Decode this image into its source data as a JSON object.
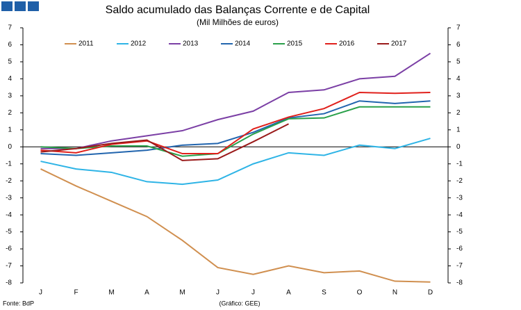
{
  "chart_data": {
    "type": "line",
    "title": "Saldo acumulado das Balanças Corrente e de Capital",
    "subtitle": "(Mil Milhões de euros)",
    "source": "Fonte: BdP",
    "credit": "(Gráfico: GEE)",
    "categories": [
      "J",
      "F",
      "M",
      "A",
      "M",
      "J",
      "J",
      "A",
      "S",
      "O",
      "N",
      "D"
    ],
    "series": [
      {
        "name": "2011",
        "color": "#d08f4f",
        "values": [
          -1.3,
          -2.3,
          -3.2,
          -4.1,
          -5.5,
          -7.1,
          -7.5,
          -7.0,
          -7.4,
          -7.3,
          -7.9,
          -7.95
        ]
      },
      {
        "name": "2012",
        "color": "#2eb4e6",
        "values": [
          -0.85,
          -1.3,
          -1.5,
          -2.05,
          -2.2,
          -1.95,
          -1.0,
          -0.35,
          -0.5,
          0.1,
          -0.1,
          0.5
        ]
      },
      {
        "name": "2013",
        "color": "#7b3fa5",
        "values": [
          -0.1,
          -0.1,
          0.35,
          0.65,
          0.95,
          1.6,
          2.1,
          3.2,
          3.35,
          4.0,
          4.15,
          5.5
        ]
      },
      {
        "name": "2014",
        "color": "#2265ae",
        "values": [
          -0.4,
          -0.5,
          -0.35,
          -0.2,
          0.1,
          0.2,
          0.85,
          1.7,
          1.95,
          2.7,
          2.55,
          2.7
        ]
      },
      {
        "name": "2015",
        "color": "#2aa04a",
        "values": [
          0.0,
          -0.1,
          0.05,
          0.05,
          -0.55,
          -0.4,
          0.75,
          1.65,
          1.7,
          2.35,
          2.35,
          2.35
        ]
      },
      {
        "name": "2016",
        "color": "#e0201b",
        "values": [
          -0.2,
          -0.35,
          0.15,
          0.35,
          -0.4,
          -0.4,
          1.05,
          1.75,
          2.25,
          3.2,
          3.15,
          3.2
        ]
      },
      {
        "name": "2017",
        "color": "#9a1a1a",
        "values": [
          -0.3,
          -0.1,
          0.2,
          0.4,
          -0.8,
          -0.7,
          0.3,
          1.35,
          null,
          null,
          null,
          null
        ]
      }
    ],
    "ylim": [
      -8,
      7
    ],
    "yticks": [
      -8,
      -7,
      -6,
      -5,
      -4,
      -3,
      -2,
      -1,
      0,
      1,
      2,
      3,
      4,
      5,
      6,
      7
    ],
    "y2lim": [
      -8,
      7
    ],
    "y2ticks": [
      -8,
      -7,
      -6,
      -5,
      -4,
      -3,
      -2,
      -1,
      0,
      1,
      2,
      3,
      4,
      5,
      6,
      7
    ],
    "grid": false,
    "legend": "top"
  }
}
